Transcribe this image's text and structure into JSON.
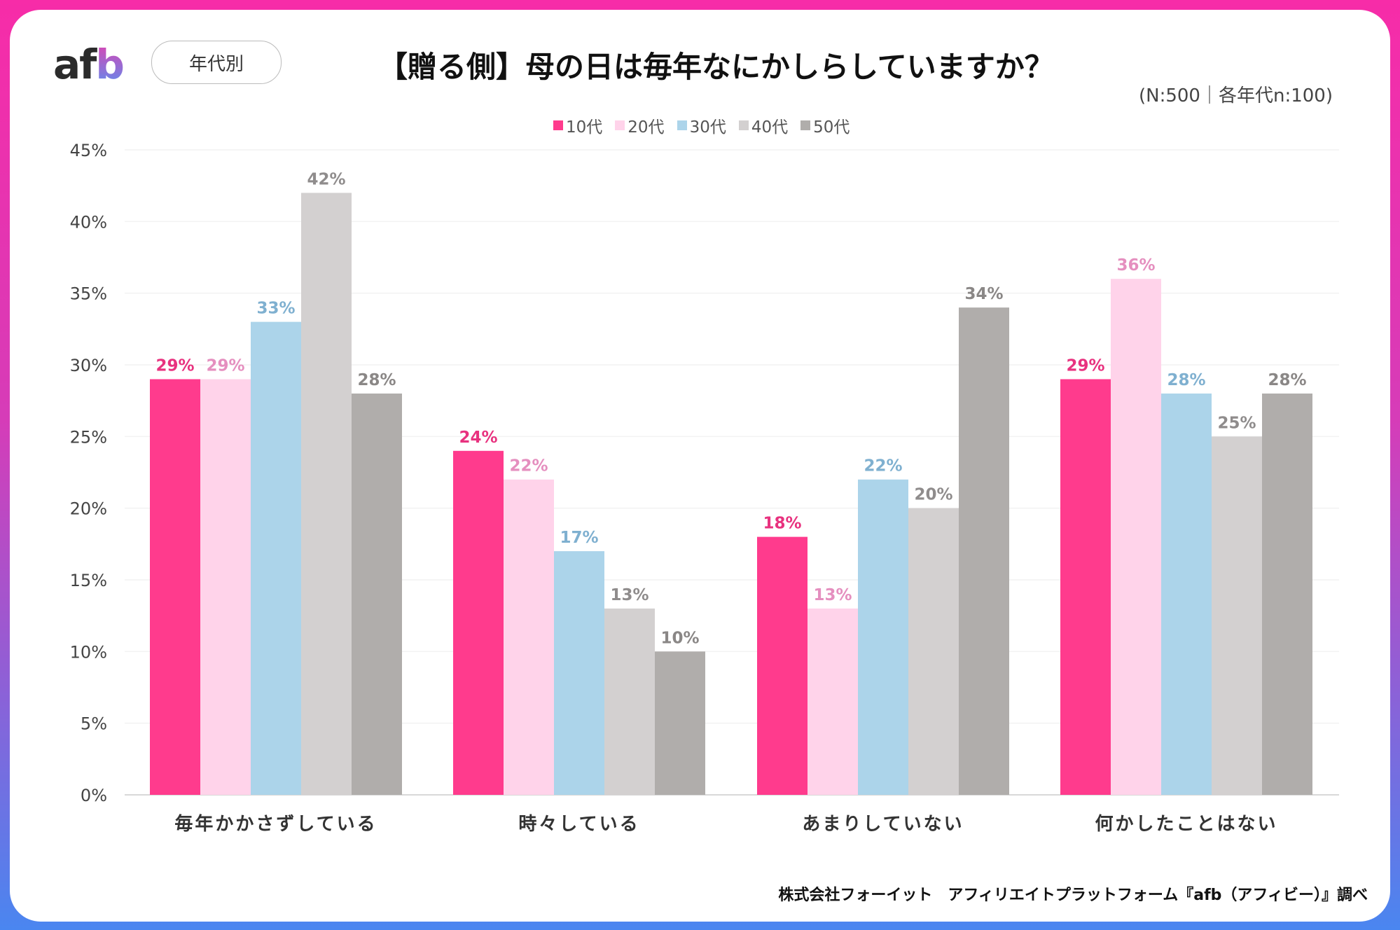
{
  "header": {
    "logo": "afb",
    "tag": "年代別",
    "title": "【贈る側】母の日は毎年なにかしらしていますか？",
    "sample": "(N:500｜各年代n:100)"
  },
  "footer": "株式会社フォーイット　アフィリエイトプラットフォーム『afb（アフィビー）』調べ",
  "chart_data": {
    "type": "bar",
    "title": "【贈る側】母の日は毎年なにかしらしていますか？",
    "categories": [
      "毎年かかさずしている",
      "時々している",
      "あまりしていない",
      "何かしたことはない"
    ],
    "series": [
      {
        "name": "10代",
        "color": "#ff3b8d",
        "label_color": "#e8327f",
        "values": [
          29,
          24,
          18,
          29
        ]
      },
      {
        "name": "20代",
        "color": "#ffd3ea",
        "label_color": "#e58fbf",
        "values": [
          29,
          22,
          13,
          36
        ]
      },
      {
        "name": "30代",
        "color": "#acd4ea",
        "label_color": "#7fb0d0",
        "values": [
          33,
          17,
          22,
          28
        ]
      },
      {
        "name": "40代",
        "color": "#d3d0d0",
        "label_color": "#8f8c8c",
        "values": [
          42,
          13,
          20,
          25
        ]
      },
      {
        "name": "50代",
        "color": "#b0adab",
        "label_color": "#8a8786",
        "values": [
          28,
          10,
          34,
          28
        ]
      }
    ],
    "yticks": [
      "0%",
      "5%",
      "10%",
      "15%",
      "20%",
      "25%",
      "30%",
      "35%",
      "40%",
      "45%"
    ],
    "ylim": [
      0,
      45
    ],
    "unit": "%",
    "grid": true,
    "legend": "top-center"
  }
}
